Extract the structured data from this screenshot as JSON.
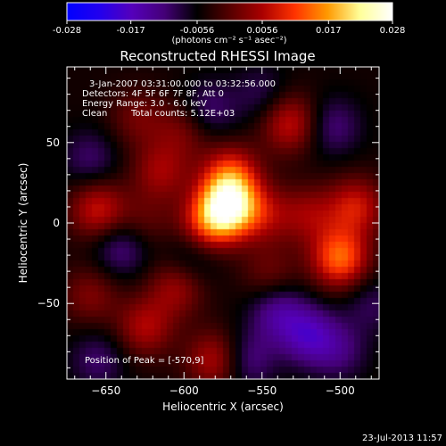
{
  "colorbar": {
    "ticks": [
      "-0.028",
      "-0.017",
      "-0.0056",
      "0.0056",
      "0.017",
      "0.028"
    ],
    "tick_values": [
      -0.028,
      -0.017,
      -0.0056,
      0.0056,
      0.017,
      0.028
    ],
    "range": [
      -0.028,
      0.028
    ],
    "units": "(photons cm⁻² s⁻¹ asec⁻²)",
    "colormap": [
      "#0000ff",
      "#2200ee",
      "#5500bb",
      "#440077",
      "#000000",
      "#550000",
      "#aa0000",
      "#ff3300",
      "#ff9900",
      "#ffff99",
      "#ffffff"
    ]
  },
  "chart_data": {
    "type": "heatmap",
    "title": "Reconstructed RHESSI Image",
    "xlabel": "Heliocentric X (arcsec)",
    "ylabel": "Heliocentric Y (arcsec)",
    "xlim": [
      -675,
      -475
    ],
    "ylim": [
      -97,
      97
    ],
    "xticks": [
      -650,
      -600,
      -550,
      -500
    ],
    "yticks": [
      50,
      0,
      -50
    ],
    "grid": false,
    "z_range": [
      -0.028,
      0.028
    ],
    "sources": [
      {
        "x": -572,
        "y": 10,
        "intensity": 0.028
      },
      {
        "x": -570,
        "y": 30,
        "intensity": 0.014
      },
      {
        "x": -586,
        "y": -2,
        "intensity": 0.012
      },
      {
        "x": -548,
        "y": 5,
        "intensity": 0.008
      },
      {
        "x": -500,
        "y": -22,
        "intensity": 0.018
      },
      {
        "x": -490,
        "y": 10,
        "intensity": 0.012
      },
      {
        "x": -520,
        "y": 5,
        "intensity": 0.008
      },
      {
        "x": -532,
        "y": 62,
        "intensity": 0.012
      },
      {
        "x": -655,
        "y": 8,
        "intensity": 0.012
      },
      {
        "x": -615,
        "y": 32,
        "intensity": 0.009
      },
      {
        "x": -630,
        "y": 65,
        "intensity": 0.006
      },
      {
        "x": -600,
        "y": 58,
        "intensity": 0.007
      },
      {
        "x": -605,
        "y": -40,
        "intensity": 0.009
      },
      {
        "x": -660,
        "y": -45,
        "intensity": 0.007
      },
      {
        "x": -625,
        "y": -65,
        "intensity": 0.01
      },
      {
        "x": -580,
        "y": -85,
        "intensity": 0.011
      },
      {
        "x": -545,
        "y": -32,
        "intensity": 0.006
      },
      {
        "x": -625,
        "y": 0,
        "intensity": 0.005
      },
      {
        "x": -540,
        "y": -55,
        "intensity": -0.009
      },
      {
        "x": -520,
        "y": -70,
        "intensity": -0.011
      },
      {
        "x": -560,
        "y": -85,
        "intensity": -0.008
      },
      {
        "x": -640,
        "y": -15,
        "intensity": -0.008
      },
      {
        "x": -655,
        "y": -85,
        "intensity": -0.006
      },
      {
        "x": -660,
        "y": 40,
        "intensity": -0.006
      },
      {
        "x": -585,
        "y": 70,
        "intensity": -0.007
      },
      {
        "x": -505,
        "y": 60,
        "intensity": -0.007
      },
      {
        "x": -550,
        "y": 80,
        "intensity": -0.005
      },
      {
        "x": -595,
        "y": -20,
        "intensity": -0.006
      },
      {
        "x": -500,
        "y": -80,
        "intensity": -0.006
      },
      {
        "x": -480,
        "y": -50,
        "intensity": -0.005
      }
    ]
  },
  "annotations": {
    "time_range": "3-Jan-2007 03:31:00.000 to 03:32:56.000",
    "detectors": "Detectors: 4F 5F 6F 7F 8F, Att 0",
    "energy": "Energy Range: 3.0 - 6.0 keV",
    "algorithm": "Clean",
    "total_counts": "Total counts: 5.12E+03",
    "peak": "Position of Peak = [-570,9]"
  },
  "footer": {
    "date": "23-Jul-2013 11:57"
  }
}
